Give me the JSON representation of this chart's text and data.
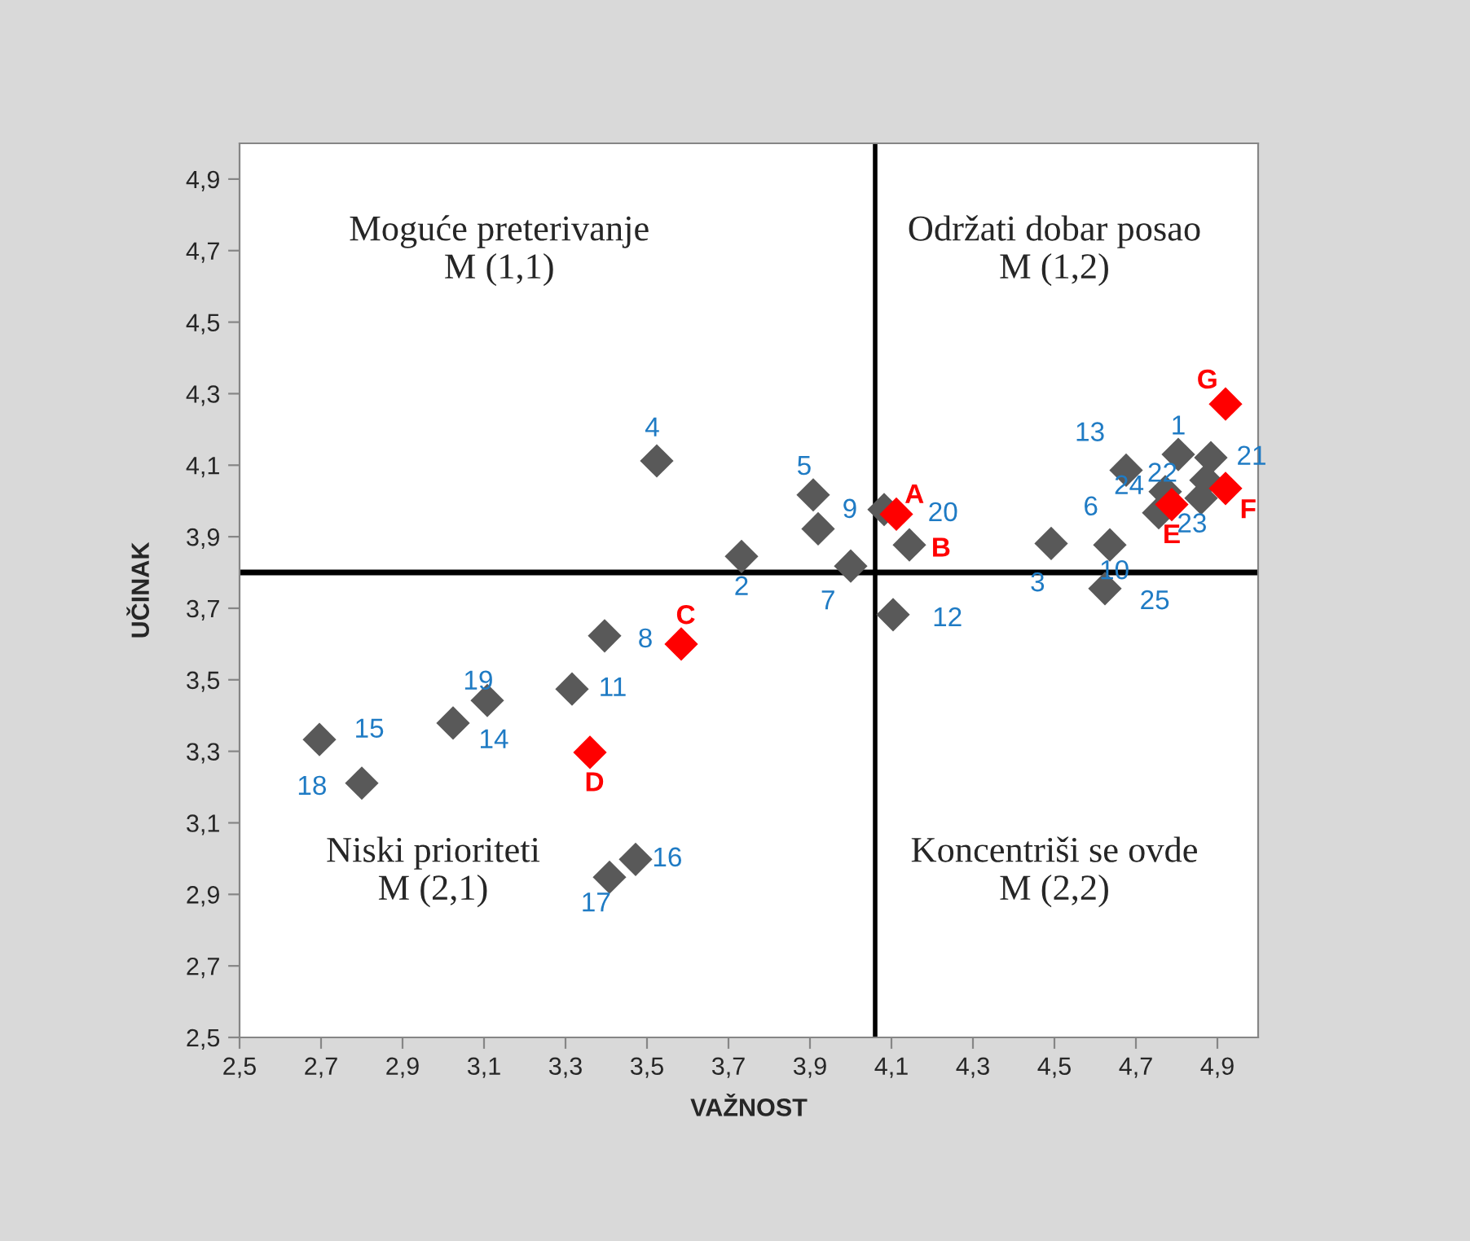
{
  "chart_data": {
    "type": "scatter",
    "xlabel": "VAŽNOST",
    "ylabel": "UČINAK",
    "xlim": [
      2.5,
      5.0
    ],
    "ylim": [
      2.5,
      5.0
    ],
    "xticks": [
      {
        "value": 2.5,
        "label": "2,5"
      },
      {
        "value": 2.7,
        "label": "2,7"
      },
      {
        "value": 2.9,
        "label": "2,9"
      },
      {
        "value": 3.1,
        "label": "3,1"
      },
      {
        "value": 3.3,
        "label": "3,3"
      },
      {
        "value": 3.5,
        "label": "3,5"
      },
      {
        "value": 3.7,
        "label": "3,7"
      },
      {
        "value": 3.9,
        "label": "3,9"
      },
      {
        "value": 4.1,
        "label": "4,1"
      },
      {
        "value": 4.3,
        "label": "4,3"
      },
      {
        "value": 4.5,
        "label": "4,5"
      },
      {
        "value": 4.7,
        "label": "4,7"
      },
      {
        "value": 4.9,
        "label": "4,9"
      }
    ],
    "yticks": [
      {
        "value": 2.5,
        "label": "2,5"
      },
      {
        "value": 2.7,
        "label": "2,7"
      },
      {
        "value": 2.9,
        "label": "2,9"
      },
      {
        "value": 3.1,
        "label": "3,1"
      },
      {
        "value": 3.3,
        "label": "3,3"
      },
      {
        "value": 3.5,
        "label": "3,5"
      },
      {
        "value": 3.7,
        "label": "3,7"
      },
      {
        "value": 3.9,
        "label": "3,9"
      },
      {
        "value": 4.1,
        "label": "4,1"
      },
      {
        "value": 4.3,
        "label": "4,3"
      },
      {
        "value": 4.5,
        "label": "4,5"
      },
      {
        "value": 4.7,
        "label": "4,7"
      },
      {
        "value": 4.9,
        "label": "4,9"
      }
    ],
    "marker": "diamond",
    "grid": false,
    "legend": false,
    "series": [
      {
        "color": "#595959",
        "x": [
          4.804,
          3.732,
          4.492,
          3.524,
          3.908,
          4.756,
          4.0,
          3.396,
          3.92,
          4.636,
          3.316,
          4.104,
          null,
          3.024,
          2.696,
          3.472,
          3.408,
          2.8,
          3.108,
          4.082,
          4.884,
          4.676,
          4.86,
          4.772,
          4.624,
          4.872
        ],
        "values": [
          4.13,
          3.845,
          3.881,
          4.112,
          4.017,
          3.967,
          3.818,
          3.623,
          3.922,
          3.877,
          3.474,
          3.682,
          null,
          3.379,
          3.333,
          2.998,
          2.948,
          3.211,
          3.442,
          3.976,
          4.121,
          4.086,
          4.008,
          4.026,
          3.755,
          4.058
        ]
      },
      {
        "color": "#ff0000",
        "x": [
          4.112,
          4.144,
          3.584,
          3.36,
          4.788,
          4.92,
          4.92
        ],
        "values": [
          3.963,
          3.877,
          3.6,
          3.297,
          3.99,
          4.035,
          4.271
        ],
        "colors": [
          "#ff0000",
          "#595959",
          "#ff0000",
          "#ff0000",
          "#ff0000",
          "#ff0000",
          "#ff0000"
        ]
      }
    ],
    "ref_lines": [
      {
        "axis": "x",
        "value": 4.06,
        "color": "#000000"
      },
      {
        "axis": "y",
        "value": 3.8,
        "color": "#000000"
      }
    ],
    "annotations": [
      "Moguće preterivanje\nM (1,1)",
      "Održati dobar posao\nM (1,2)",
      "Niski prioriteti\nM (2,1)",
      "Koncentriši se ovde\nM (2,2)",
      {
        "text": "1",
        "x": 4.804,
        "y": 4.13
      },
      {
        "text": "2",
        "x": 3.732,
        "y": 3.845
      },
      {
        "text": "3",
        "x": 4.492,
        "y": 3.881
      },
      {
        "text": "4",
        "x": 3.524,
        "y": 4.112
      },
      {
        "text": "5",
        "x": 3.908,
        "y": 4.017
      },
      {
        "text": "6",
        "x": 4.756,
        "y": 3.967
      },
      {
        "text": "7",
        "x": 4.0,
        "y": 3.818
      },
      {
        "text": "8",
        "x": 3.396,
        "y": 3.623
      },
      {
        "text": "9",
        "x": 3.92,
        "y": 3.922
      },
      {
        "text": "10",
        "x": 4.636,
        "y": 3.877
      },
      {
        "text": "11",
        "x": 3.316,
        "y": 3.474
      },
      {
        "text": "12",
        "x": 4.104,
        "y": 3.682
      },
      {
        "text": "13",
        "x": 4.676,
        "y": 4.086
      },
      {
        "text": "14",
        "x": 3.024,
        "y": 3.379
      },
      {
        "text": "15",
        "x": 2.696,
        "y": 3.333
      },
      {
        "text": "16",
        "x": 3.472,
        "y": 2.998
      },
      {
        "text": "17",
        "x": 3.408,
        "y": 2.948
      },
      {
        "text": "18",
        "x": 2.8,
        "y": 3.211
      },
      {
        "text": "19",
        "x": 3.108,
        "y": 3.442
      },
      {
        "text": "20",
        "x": 4.082,
        "y": 3.976
      },
      {
        "text": "21",
        "x": 4.884,
        "y": 4.121
      },
      {
        "text": "22",
        "x": 4.676,
        "y": 4.086
      },
      {
        "text": "23",
        "x": 4.86,
        "y": 4.008
      },
      {
        "text": "24",
        "x": 4.772,
        "y": 4.026
      },
      {
        "text": "25",
        "x": 4.624,
        "y": 3.755
      },
      {
        "text": "A",
        "x": 4.112,
        "y": 3.963
      },
      {
        "text": "B",
        "x": 4.144,
        "y": 3.877
      },
      {
        "text": "C",
        "x": 3.584,
        "y": 3.6
      },
      {
        "text": "D",
        "x": 3.36,
        "y": 3.297
      },
      {
        "text": "E",
        "x": 4.788,
        "y": 3.99
      },
      {
        "text": "F",
        "x": 4.92,
        "y": 4.035
      },
      {
        "text": "G",
        "x": 4.92,
        "y": 4.271
      }
    ]
  }
}
